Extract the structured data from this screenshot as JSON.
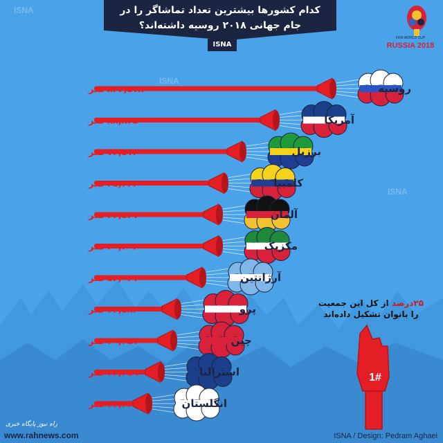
{
  "header": {
    "title_line1": "کدام کشورها بیشترین تعداد تماشاگر را در",
    "title_line2": "جام جهانی ۲۰۱۸ روسیه داشته‌اند؟",
    "agency": "ISNA"
  },
  "logo": {
    "caption": "RUSSIA 2018",
    "small_text": "FIFA WORLD CUP"
  },
  "note": {
    "percent": "۲۵درصد",
    "line1_rest": " از کل این جمعیت",
    "line2": "را بانوان تشکیل داده‌اند",
    "foam_hand_label": "1#"
  },
  "footer": {
    "credit": "ISNA / Design: Pedram Aghaei",
    "site": "www.rahnews.com",
    "brand": "راه نیوز پایگاه خبری"
  },
  "colors": {
    "background": "#4aa3e8",
    "horn": "#e31e24",
    "horn_dark": "#b3151a",
    "label": "#1b2440",
    "banner": "#1b2440",
    "accent": "#e31e24"
  },
  "chart_data": {
    "type": "bar",
    "orientation": "horizontal",
    "unit_label": "نفر",
    "categories": [
      "روسیه",
      "آمریکا",
      "برزیل",
      "کلمبیا",
      "آلمان",
      "مکزیک",
      "آرژانتین",
      "پرو",
      "چین",
      "استرالیا",
      "انگلستان"
    ],
    "flag_icons": [
      "russia-flag-icon",
      "usa-flag-icon",
      "brazil-flag-icon",
      "colombia-flag-icon",
      "germany-flag-icon",
      "mexico-flag-icon",
      "argentina-flag-icon",
      "peru-flag-icon",
      "china-flag-icon",
      "australia-flag-icon",
      "england-flag-icon"
    ],
    "value_labels": [
      "۸۴۲,۵۷۸ نفر",
      "۸۸,۸۲۵ نفر",
      "۷۲,۵۱۲ نفر",
      "۶۵,۲۳۴ نفر",
      "۶۲,۵۴۱ نفر",
      "۶۰,۳۰۲ نفر",
      "۵۴,۰۳۱ نفر",
      "۴۳,۵۸۳ نفر",
      "۴۰,۲۵۱ نفر",
      "۳۶,۳۵۹ نفر",
      "۳۲,۳۶۲ نفر"
    ],
    "values": [
      842578,
      88825,
      72512,
      65234,
      62541,
      60302,
      54031,
      43583,
      40251,
      36359,
      32362
    ]
  }
}
